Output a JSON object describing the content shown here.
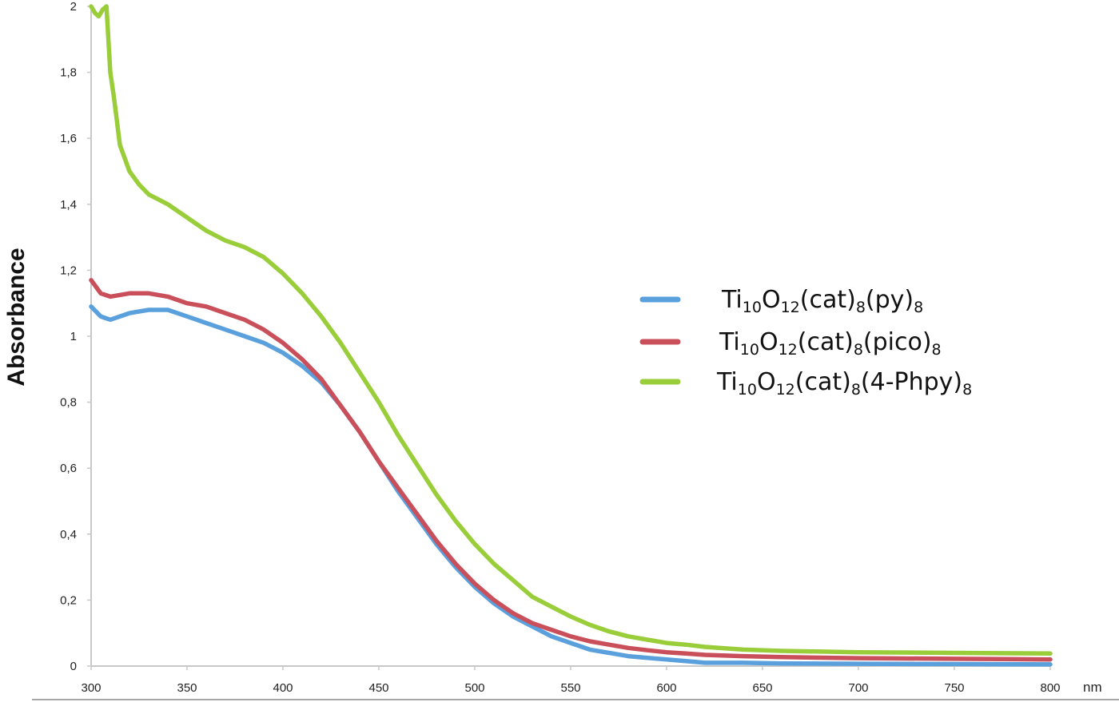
{
  "chart_data": {
    "type": "line",
    "title": "",
    "xlabel": "",
    "x_unit_label": "nm",
    "ylabel": "Absorbance",
    "xlim": [
      300,
      800
    ],
    "ylim": [
      0,
      2
    ],
    "x_ticks": [
      300,
      350,
      400,
      450,
      500,
      550,
      600,
      650,
      700,
      750,
      800
    ],
    "x_tick_labels": [
      "300",
      "350",
      "400",
      "450",
      "500",
      "550",
      "600",
      "650",
      "700",
      "750",
      "800"
    ],
    "y_ticks": [
      0,
      0.2,
      0.4,
      0.6,
      0.8,
      1.0,
      1.2,
      1.4,
      1.6,
      1.8,
      2.0
    ],
    "y_tick_labels": [
      "0",
      "0,2",
      "0,4",
      "0,6",
      "0,8",
      "1",
      "1,2",
      "1,4",
      "1,6",
      "1,8",
      "2"
    ],
    "grid": false,
    "legend_position": "right",
    "series": [
      {
        "name": "Ti10O12(cat)8(py)8",
        "legend_parts": [
          {
            "t": "Ti",
            "sub": false
          },
          {
            "t": "10",
            "sub": true
          },
          {
            "t": "O",
            "sub": false
          },
          {
            "t": "12",
            "sub": true
          },
          {
            "t": "(cat)",
            "sub": false
          },
          {
            "t": "8",
            "sub": true
          },
          {
            "t": "(py)",
            "sub": false
          },
          {
            "t": "8",
            "sub": true
          }
        ],
        "color": "#5aa0dc",
        "x": [
          300,
          305,
          310,
          320,
          330,
          340,
          350,
          360,
          370,
          380,
          390,
          400,
          410,
          420,
          430,
          440,
          450,
          460,
          470,
          480,
          490,
          500,
          510,
          520,
          530,
          540,
          550,
          560,
          570,
          580,
          590,
          600,
          610,
          620,
          640,
          660,
          700,
          750,
          800
        ],
        "y": [
          1.09,
          1.06,
          1.05,
          1.07,
          1.08,
          1.08,
          1.06,
          1.04,
          1.02,
          1.0,
          0.98,
          0.95,
          0.91,
          0.86,
          0.79,
          0.71,
          0.62,
          0.53,
          0.45,
          0.37,
          0.3,
          0.24,
          0.19,
          0.15,
          0.12,
          0.09,
          0.07,
          0.05,
          0.04,
          0.03,
          0.025,
          0.02,
          0.015,
          0.01,
          0.01,
          0.008,
          0.007,
          0.006,
          0.005
        ]
      },
      {
        "name": "Ti10O12(cat)8(pico)8",
        "legend_parts": [
          {
            "t": "Ti",
            "sub": false
          },
          {
            "t": "10",
            "sub": true
          },
          {
            "t": "O",
            "sub": false
          },
          {
            "t": "12",
            "sub": true
          },
          {
            "t": "(cat)",
            "sub": false
          },
          {
            "t": "8",
            "sub": true
          },
          {
            "t": "(pico)",
            "sub": false
          },
          {
            "t": "8",
            "sub": true
          }
        ],
        "color": "#c9505a",
        "x": [
          300,
          305,
          310,
          320,
          330,
          340,
          350,
          360,
          370,
          380,
          390,
          400,
          410,
          420,
          430,
          440,
          450,
          460,
          470,
          480,
          490,
          500,
          510,
          520,
          530,
          540,
          550,
          560,
          570,
          580,
          590,
          600,
          610,
          620,
          640,
          660,
          700,
          750,
          800
        ],
        "y": [
          1.17,
          1.13,
          1.12,
          1.13,
          1.13,
          1.12,
          1.1,
          1.09,
          1.07,
          1.05,
          1.02,
          0.98,
          0.93,
          0.87,
          0.79,
          0.71,
          0.62,
          0.54,
          0.46,
          0.38,
          0.31,
          0.25,
          0.2,
          0.16,
          0.13,
          0.11,
          0.09,
          0.075,
          0.065,
          0.055,
          0.048,
          0.042,
          0.038,
          0.034,
          0.03,
          0.027,
          0.024,
          0.022,
          0.02
        ]
      },
      {
        "name": "Ti10O12(cat)8(4-Phpy)8",
        "legend_parts": [
          {
            "t": "Ti",
            "sub": false
          },
          {
            "t": "10",
            "sub": true
          },
          {
            "t": "O",
            "sub": false
          },
          {
            "t": "12",
            "sub": true
          },
          {
            "t": "(cat)",
            "sub": false
          },
          {
            "t": "8",
            "sub": true
          },
          {
            "t": "(4-Phpy)",
            "sub": false
          },
          {
            "t": "8",
            "sub": true
          }
        ],
        "color": "#9acd3a",
        "x": [
          300,
          302,
          304,
          306,
          308,
          310,
          312,
          315,
          320,
          325,
          330,
          340,
          350,
          360,
          370,
          380,
          390,
          400,
          410,
          420,
          430,
          440,
          450,
          460,
          470,
          480,
          490,
          500,
          510,
          520,
          530,
          540,
          550,
          560,
          570,
          580,
          590,
          600,
          610,
          620,
          640,
          660,
          700,
          750,
          800
        ],
        "y": [
          2.0,
          1.98,
          1.97,
          1.99,
          2.0,
          1.8,
          1.72,
          1.58,
          1.5,
          1.46,
          1.43,
          1.4,
          1.36,
          1.32,
          1.29,
          1.27,
          1.24,
          1.19,
          1.13,
          1.06,
          0.98,
          0.89,
          0.8,
          0.7,
          0.61,
          0.52,
          0.44,
          0.37,
          0.31,
          0.26,
          0.21,
          0.18,
          0.15,
          0.125,
          0.105,
          0.09,
          0.08,
          0.07,
          0.065,
          0.058,
          0.05,
          0.046,
          0.042,
          0.04,
          0.038
        ]
      }
    ]
  }
}
